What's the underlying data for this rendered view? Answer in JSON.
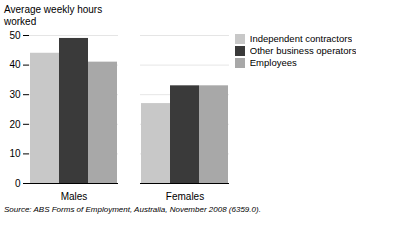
{
  "chart_data": {
    "type": "bar",
    "categories": [
      "Males",
      "Females"
    ],
    "series": [
      {
        "name": "Independent contractors",
        "values": [
          44,
          27
        ],
        "color": "#c8c8c8"
      },
      {
        "name": "Other business operators",
        "values": [
          49,
          33
        ],
        "color": "#3a3a3a"
      },
      {
        "name": "Employees",
        "values": [
          41,
          33
        ],
        "color": "#a8a8a8"
      }
    ],
    "ylabel": "Average weekly hours\nworked",
    "ylim": [
      0,
      50
    ],
    "yticks": [
      0,
      10,
      20,
      30,
      40,
      50
    ],
    "grid": true,
    "legend": "right",
    "caption": "Source: ABS Forms of Employment, Australia, November 2008 (6359.0)."
  }
}
